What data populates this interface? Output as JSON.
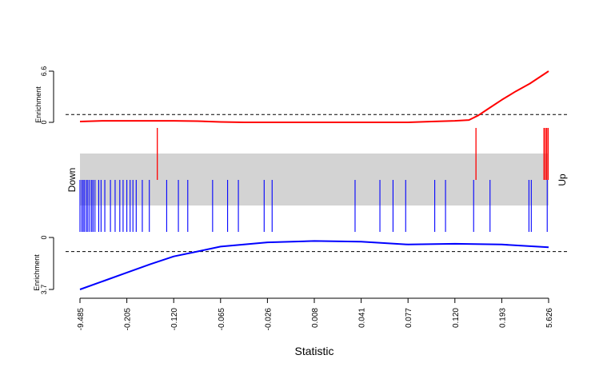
{
  "chart_data": {
    "type": "barcode",
    "xlabel": "Statistic",
    "x_tick_labels": [
      "-9.485",
      "-0.205",
      "-0.120",
      "-0.065",
      "-0.026",
      "0.008",
      "0.041",
      "0.077",
      "0.120",
      "0.193",
      "5.626"
    ],
    "side_labels": {
      "down": "Down",
      "up": "Up"
    },
    "enrichment_label": "Enrichment",
    "colors": {
      "up": "#ff0000",
      "down": "#0000ff",
      "band": "#d3d3d3"
    },
    "up_panel": {
      "ylim": [
        0,
        6.6
      ],
      "y_tick_labels": [
        "0",
        "6.6"
      ],
      "baseline": 1.0,
      "enrichment_curve": {
        "x_rank": [
          0.0,
          0.05,
          0.1,
          0.15,
          0.2,
          0.25,
          0.3,
          0.35,
          0.4,
          0.45,
          0.5,
          0.55,
          0.6,
          0.65,
          0.7,
          0.75,
          0.8,
          0.83,
          0.85,
          0.87,
          0.9,
          0.93,
          0.96,
          1.0
        ],
        "values": [
          0.1,
          0.2,
          0.2,
          0.2,
          0.2,
          0.15,
          0.05,
          0.0,
          0.0,
          0.0,
          0.0,
          0.0,
          0.0,
          0.0,
          0.0,
          0.1,
          0.2,
          0.3,
          0.9,
          1.7,
          2.9,
          4.0,
          5.0,
          6.6
        ]
      },
      "gene_ranks": [
        0.165,
        0.845,
        0.99,
        0.993,
        0.996,
        0.999
      ]
    },
    "down_panel": {
      "ylim": [
        0,
        3.7
      ],
      "y_tick_labels": [
        "0",
        "3.7"
      ],
      "baseline": 1.0,
      "enrichment_curve": {
        "x_rank": [
          0.0,
          0.05,
          0.1,
          0.15,
          0.2,
          0.25,
          0.3,
          0.4,
          0.5,
          0.6,
          0.7,
          0.8,
          0.9,
          1.0
        ],
        "values": [
          3.7,
          3.1,
          2.5,
          1.9,
          1.35,
          1.0,
          0.65,
          0.35,
          0.25,
          0.3,
          0.5,
          0.45,
          0.5,
          0.7
        ]
      },
      "gene_ranks": [
        0.0,
        0.004,
        0.007,
        0.01,
        0.014,
        0.017,
        0.021,
        0.025,
        0.028,
        0.032,
        0.04,
        0.045,
        0.053,
        0.065,
        0.075,
        0.085,
        0.092,
        0.1,
        0.107,
        0.113,
        0.12,
        0.133,
        0.148,
        0.185,
        0.21,
        0.23,
        0.283,
        0.315,
        0.338,
        0.393,
        0.41,
        0.587,
        0.64,
        0.668,
        0.695,
        0.757,
        0.78,
        0.84,
        0.875,
        0.958,
        0.963,
        0.997
      ]
    }
  }
}
